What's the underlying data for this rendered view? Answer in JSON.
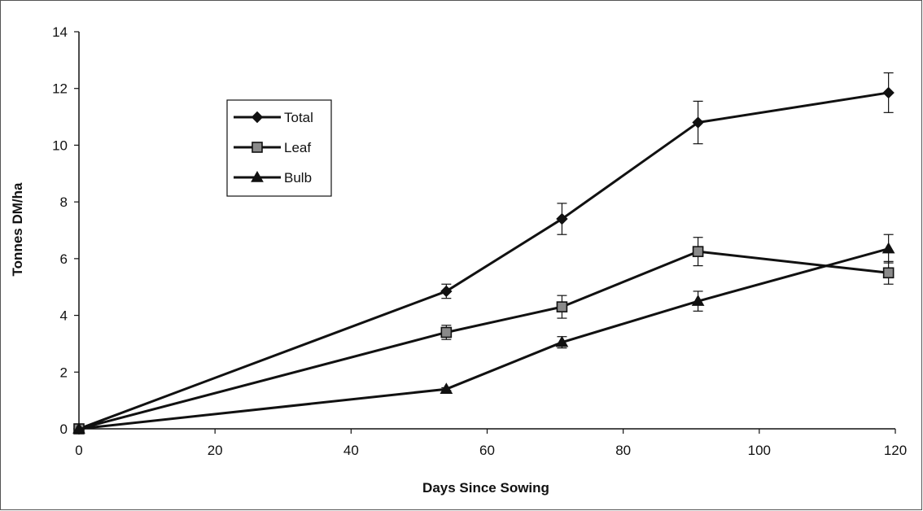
{
  "chart_data": {
    "type": "line",
    "title": "",
    "xlabel": "Days Since Sowing",
    "ylabel": "Tonnes DM/ha",
    "xlim": [
      0,
      120
    ],
    "ylim": [
      0,
      14
    ],
    "x_ticks": [
      0,
      20,
      40,
      60,
      80,
      100,
      120
    ],
    "y_ticks": [
      0,
      2,
      4,
      6,
      8,
      10,
      12,
      14
    ],
    "grid": false,
    "legend_position": "upper-left",
    "x": [
      0,
      54,
      71,
      91,
      119
    ],
    "series": [
      {
        "name": "Total",
        "marker": "diamond",
        "color": "#111111",
        "values": [
          0,
          4.85,
          7.4,
          10.8,
          11.85
        ],
        "error": [
          0,
          0.25,
          0.55,
          0.75,
          0.7
        ]
      },
      {
        "name": "Leaf",
        "marker": "square",
        "color": "#111111",
        "values": [
          0,
          3.4,
          4.3,
          6.25,
          5.5
        ],
        "error": [
          0,
          0.25,
          0.4,
          0.5,
          0.4
        ]
      },
      {
        "name": "Bulb",
        "marker": "triangle",
        "color": "#111111",
        "values": [
          0,
          1.4,
          3.05,
          4.5,
          6.35
        ],
        "error": [
          0,
          0.05,
          0.2,
          0.35,
          0.5
        ]
      }
    ]
  }
}
